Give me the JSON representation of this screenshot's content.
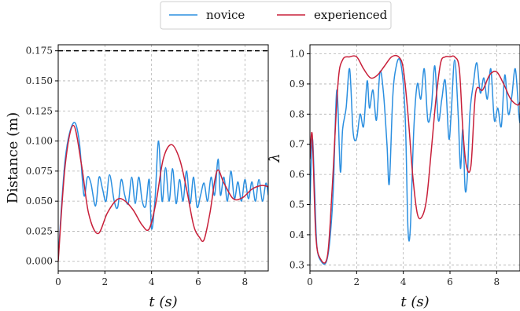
{
  "legend": [
    {
      "label": "novice",
      "color": "#2b8fe0"
    },
    {
      "label": "experienced",
      "color": "#c8203a"
    }
  ],
  "chart_data": [
    {
      "type": "line",
      "xlabel": "t (s)",
      "ylabel": "Distance (m)",
      "xlim": [
        0,
        9
      ],
      "ylim": [
        -0.008,
        0.18
      ],
      "xticks": [
        0,
        2,
        4,
        6,
        8
      ],
      "yticks": [
        0.0,
        0.025,
        0.05,
        0.075,
        0.1,
        0.125,
        0.15,
        0.175
      ],
      "ytick_labels": [
        "0.000",
        "0.025",
        "0.050",
        "0.075",
        "0.100",
        "0.125",
        "0.150",
        "0.175"
      ],
      "grid": true,
      "reference_line": {
        "y": 0.175,
        "style": "dashed",
        "color": "#000000"
      },
      "series": [
        {
          "name": "novice",
          "color": "#2b8fe0",
          "x": [
            0,
            0.3,
            0.65,
            0.9,
            1.1,
            1.25,
            1.4,
            1.6,
            1.75,
            1.9,
            2.05,
            2.2,
            2.4,
            2.55,
            2.7,
            2.85,
            3.0,
            3.15,
            3.3,
            3.45,
            3.6,
            3.75,
            3.9,
            4.0,
            4.15,
            4.3,
            4.45,
            4.6,
            4.75,
            4.9,
            5.05,
            5.2,
            5.35,
            5.5,
            5.65,
            5.8,
            5.95,
            6.1,
            6.25,
            6.4,
            6.55,
            6.7,
            6.85,
            6.95,
            7.1,
            7.25,
            7.4,
            7.55,
            7.7,
            7.85,
            8.0,
            8.15,
            8.3,
            8.45,
            8.6,
            8.75,
            8.9,
            9.0
          ],
          "y": [
            0.003,
            0.085,
            0.115,
            0.1,
            0.055,
            0.07,
            0.065,
            0.046,
            0.07,
            0.06,
            0.05,
            0.072,
            0.05,
            0.045,
            0.068,
            0.055,
            0.048,
            0.07,
            0.048,
            0.07,
            0.05,
            0.046,
            0.068,
            0.027,
            0.052,
            0.1,
            0.05,
            0.078,
            0.05,
            0.077,
            0.048,
            0.068,
            0.05,
            0.075,
            0.048,
            0.07,
            0.045,
            0.055,
            0.065,
            0.05,
            0.07,
            0.055,
            0.085,
            0.055,
            0.07,
            0.05,
            0.075,
            0.052,
            0.066,
            0.05,
            0.068,
            0.052,
            0.066,
            0.05,
            0.068,
            0.05,
            0.065,
            0.055
          ]
        },
        {
          "name": "experienced",
          "color": "#c8203a",
          "x": [
            0,
            0.3,
            0.65,
            1.0,
            1.3,
            1.7,
            2.1,
            2.5,
            2.8,
            3.2,
            3.6,
            3.9,
            4.2,
            4.5,
            4.85,
            5.2,
            5.5,
            5.8,
            6.05,
            6.25,
            6.5,
            6.8,
            7.1,
            7.5,
            7.9,
            8.3,
            8.7,
            9.0
          ],
          "y": [
            0.0,
            0.08,
            0.113,
            0.08,
            0.04,
            0.023,
            0.04,
            0.051,
            0.051,
            0.043,
            0.03,
            0.027,
            0.05,
            0.085,
            0.097,
            0.085,
            0.06,
            0.03,
            0.02,
            0.018,
            0.04,
            0.075,
            0.065,
            0.052,
            0.053,
            0.06,
            0.063,
            0.062
          ]
        }
      ]
    },
    {
      "type": "line",
      "xlabel": "t (s)",
      "ylabel": "λ",
      "xlim": [
        0,
        9
      ],
      "ylim": [
        0.28,
        1.03
      ],
      "xticks": [
        0,
        2,
        4,
        6,
        8
      ],
      "yticks": [
        0.3,
        0.4,
        0.5,
        0.6,
        0.7,
        0.8,
        0.9,
        1.0
      ],
      "ytick_labels": [
        "0.3",
        "0.4",
        "0.5",
        "0.6",
        "0.7",
        "0.8",
        "0.9",
        "1.0"
      ],
      "grid": true,
      "series": [
        {
          "name": "novice",
          "color": "#2b8fe0",
          "x": [
            0,
            0.1,
            0.2,
            0.3,
            0.5,
            0.7,
            0.85,
            1.0,
            1.15,
            1.3,
            1.4,
            1.55,
            1.7,
            1.85,
            2.0,
            2.15,
            2.3,
            2.45,
            2.55,
            2.7,
            2.85,
            3.0,
            3.15,
            3.3,
            3.4,
            3.55,
            3.7,
            3.85,
            4.0,
            4.1,
            4.2,
            4.3,
            4.45,
            4.6,
            4.75,
            4.9,
            5.05,
            5.2,
            5.35,
            5.5,
            5.65,
            5.8,
            5.95,
            6.05,
            6.2,
            6.35,
            6.45,
            6.55,
            6.65,
            6.75,
            6.85,
            7.0,
            7.15,
            7.3,
            7.45,
            7.6,
            7.75,
            7.9,
            8.05,
            8.2,
            8.35,
            8.5,
            8.65,
            8.8,
            8.95,
            9.0
          ],
          "y": [
            0.5,
            0.72,
            0.55,
            0.36,
            0.31,
            0.31,
            0.38,
            0.55,
            0.88,
            0.61,
            0.75,
            0.82,
            0.95,
            0.74,
            0.72,
            0.8,
            0.76,
            0.91,
            0.82,
            0.88,
            0.78,
            0.94,
            0.87,
            0.7,
            0.57,
            0.86,
            0.96,
            0.98,
            0.9,
            0.75,
            0.42,
            0.42,
            0.75,
            0.9,
            0.85,
            0.95,
            0.78,
            0.82,
            0.96,
            0.78,
            0.85,
            0.91,
            0.72,
            0.8,
            0.98,
            0.8,
            0.62,
            0.75,
            0.55,
            0.6,
            0.8,
            0.9,
            0.97,
            0.87,
            0.92,
            0.85,
            0.95,
            0.78,
            0.82,
            0.76,
            0.93,
            0.8,
            0.86,
            0.95,
            0.8,
            0.77
          ]
        },
        {
          "name": "experienced",
          "color": "#c8203a",
          "x": [
            0,
            0.1,
            0.25,
            0.45,
            0.75,
            0.95,
            1.2,
            1.4,
            1.7,
            2.0,
            2.3,
            2.6,
            2.9,
            3.2,
            3.5,
            3.8,
            4.0,
            4.2,
            4.4,
            4.6,
            4.8,
            5.0,
            5.2,
            5.4,
            5.6,
            5.8,
            6.0,
            6.2,
            6.4,
            6.55,
            6.7,
            6.9,
            7.1,
            7.4,
            7.7,
            8.0,
            8.3,
            8.6,
            8.9,
            9.0
          ],
          "y": [
            0.65,
            0.73,
            0.4,
            0.32,
            0.33,
            0.55,
            0.9,
            0.98,
            0.99,
            0.99,
            0.95,
            0.92,
            0.93,
            0.96,
            0.99,
            0.99,
            0.95,
            0.8,
            0.6,
            0.47,
            0.46,
            0.52,
            0.68,
            0.85,
            0.97,
            0.99,
            0.99,
            0.99,
            0.95,
            0.75,
            0.63,
            0.63,
            0.87,
            0.88,
            0.93,
            0.94,
            0.9,
            0.85,
            0.83,
            0.84
          ]
        }
      ]
    }
  ]
}
